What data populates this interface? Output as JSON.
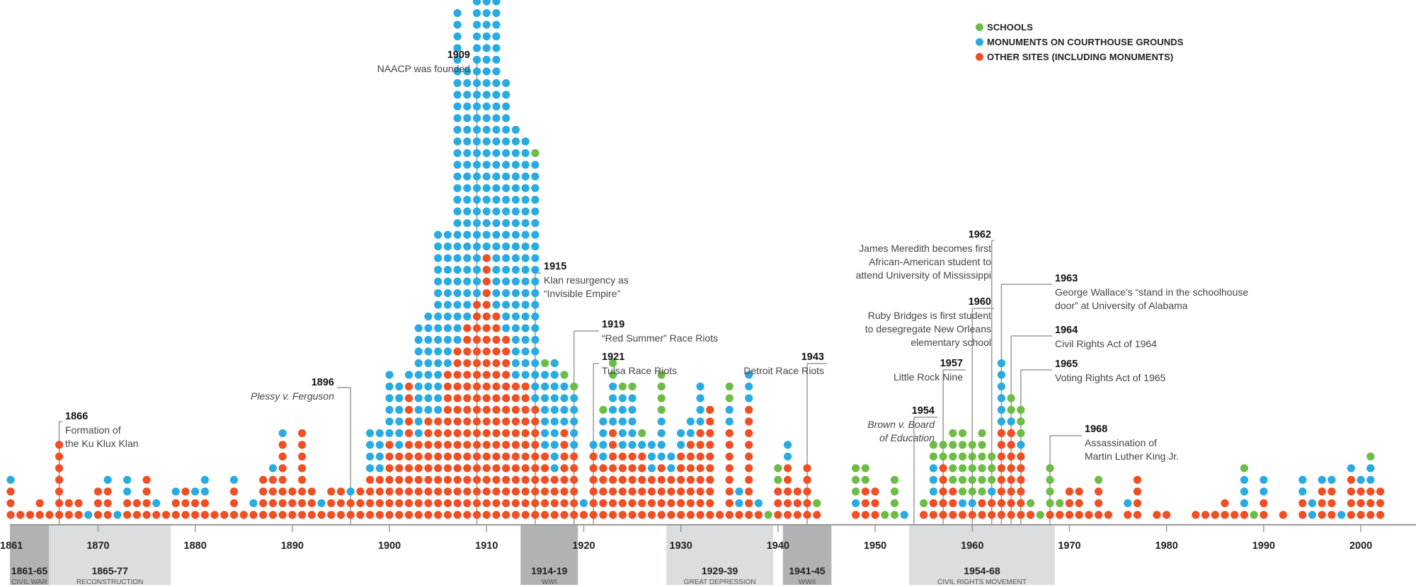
{
  "chart_data": {
    "type": "scatter",
    "subtype": "stacked-dot-timeline",
    "title": "",
    "xlabel": "",
    "ylabel": "",
    "x_range": [
      1861,
      2016
    ],
    "x_ticks": [
      1861,
      1870,
      1880,
      1890,
      1900,
      1910,
      1920,
      1930,
      1940,
      1950,
      1960,
      1970,
      1980,
      1990,
      2000
    ],
    "legend_position": "top-right",
    "encoding": "Each dot is one site; dots stack upward per year. Column strings read bottom to top: R = other sites, B = monuments on courthouse grounds, G = schools.",
    "series": [
      {
        "key": "G",
        "name": "SCHOOLS",
        "color": "#6cbd45"
      },
      {
        "key": "B",
        "name": "MONUMENTS ON COURTHOUSE GROUNDS",
        "color": "#29abe2"
      },
      {
        "key": "R",
        "name": "OTHER SITES (INCLUDING MONUMENTS)",
        "color": "#f04e23"
      }
    ],
    "columns": {
      "1861": "RRRB",
      "1862": "R",
      "1863": "R",
      "1864": "RR",
      "1865": "R",
      "1866": "RRRRRRR",
      "1867": "RR",
      "1868": "RR",
      "1869": "B",
      "1870": "RRR",
      "1871": "RRRB",
      "1872": "B",
      "1873": "RRBB",
      "1874": "RR",
      "1875": "RRRR",
      "1876": "RB",
      "1877": "R",
      "1878": "RRB",
      "1879": "RRR",
      "1880": "RRB",
      "1881": "RRBB",
      "1882": "R",
      "1883": "R",
      "1884": "RRRB",
      "1885": "R",
      "1886": "RB",
      "1887": "RRRR",
      "1888": "RRRRB",
      "1889": "RRRRRRRB",
      "1890": "RRR",
      "1891": "RRRRRRRR",
      "1892": "RRR",
      "1893": "RB",
      "1894": "RRR",
      "1895": "RRR",
      "1896": "RRB",
      "1897": "RRR",
      "1898": "RRRRBBBB",
      "1899": "RRRRBBBB",
      "1900": "RRRRRRRBBBBBB",
      "1901": "RRRRRRBBBBBB",
      "1902": "RRRRRRRRRRRRB",
      "1903": "RRRRRRRBBBBBBBBBB",
      "1904": "RRRRRRRRRBBBBBBBBB",
      "1905": "RRRRRRRRRBBBBBBBBBBBBBBBB",
      "1906": "RRRRRRRRRRRRRBBBBBBBBBBBB",
      "1907": "RRRRRRRRRRRRRRRBBBBBBBBBBBBBBBBBBBBBBBBBBBBB",
      "1908": "RRRRRRRRRRRRRRRRRBBBBBBBBBBBBBBBBBBBBBB",
      "1909": "RRRRRRRRRRRRRRRRRRRBBBBBBBBBBBBBBBBBBBBBBBBBBBBBBBB",
      "1910": "RRRRRRRRRRRRRRRRRRRRRRRBBBBBBBBBBBBBBBBBBBBBBG",
      "1911": "RRRRRRRRRRRRRRRRRRBBBBBBBBBBBBBBBBBBBBBBBBBBBBBBBB",
      "1912": "RRRRRRRRRRRRRRRRBBBBBBBBBBBBBBBBBBBBBB",
      "1913": "RRRRRRRRRRRRBBBBBBBBBBBBBBBBBBBBBB",
      "1914": "RRRRRRRRRRRRBBBBBBBBBBBBBBBBBBBBB",
      "1915": "RRRRRRRRRRBBBBBBBBBBBBBBBBBBBBBG",
      "1916": "RRRRRRBBBBBBBG",
      "1917": "RRRRBBBBBBBBBB",
      "1918": "RRRRRRRRBBBBG",
      "1919": "RRRRRRBBBBBG",
      "1920": "RB",
      "1921": "RRRRRRB",
      "1922": "RRRRRBBBBG",
      "1923": "RRRRRRRRBBBBGG",
      "1924": "RRRRRRBBBBBG",
      "1925": "RRRRRRBBBBBG",
      "1926": "RRRRRRBG",
      "1927": "RRRRBBB",
      "1928": "RRRRRBBBBGGGG",
      "1929": "RRRRBB",
      "1930": "RRRRRRBB",
      "1931": "RRRRRRRBB",
      "1932": "RRRRRRRRBBBB",
      "1933": "RRRRRRRRRR",
      "1934": "R",
      "1935": "RRRRRRRRBBGG",
      "1936": "RBB",
      "1937": "RRRRRRRRRRBBB",
      "1938": "RB",
      "1939": "G",
      "1940": "RRRGG",
      "1941": "RRRRRBB",
      "1942": "RRR",
      "1943": "RRRRR",
      "1944": "RG",
      "1948": "RBGGG",
      "1949": "RRRGG",
      "1950": "RRR",
      "1951": "G",
      "1952": "GGGG",
      "1953": "B",
      "1955": "RG",
      "1956": "RRBBBGG",
      "1957": "RRRRRGG",
      "1958": "RRRGGGGG",
      "1959": "RBGGGGGG",
      "1960": "RBGGGGG",
      "1961": "RRGGGGGG",
      "1962": "RRBGGG",
      "1963": "RRRRRRRRBBBBBB",
      "1964": "RRRRRRRRBGG",
      "1965": "RRRRRRBGGG",
      "1966": "RG",
      "1967": "G",
      "1968": "RGGGG",
      "1969": "RG",
      "1970": "RRR",
      "1971": "RRR",
      "1972": "R",
      "1973": "RRRG",
      "1974": "R",
      "1976": "RB",
      "1977": "RRRR",
      "1979": "R",
      "1980": "R",
      "1983": "R",
      "1984": "R",
      "1985": "R",
      "1986": "RR",
      "1987": "R",
      "1988": "RBBBG",
      "1989": "G",
      "1990": "RRBB",
      "1992": "R",
      "1994": "RRBB",
      "1995": "BB",
      "1996": "RRRB",
      "1997": "RRRB",
      "1998": "B",
      "1999": "RRRRB",
      "2000": "RRRB",
      "2001": "RRRBBG",
      "2002": "RRR"
    },
    "periods": [
      {
        "range": "1861-65",
        "name": "CIVIL WAR",
        "start": 1861,
        "end": 1865,
        "shade": "dark"
      },
      {
        "range": "1865-77",
        "name": "RECONSTRUCTION",
        "start": 1865,
        "end": 1877,
        "shade": "light"
      },
      {
        "range": "1914-19",
        "name": "WWI",
        "start": 1914,
        "end": 1918.9,
        "shade": "dark"
      },
      {
        "range": "1929-39",
        "name": "GREAT DEPRESSION",
        "start": 1929,
        "end": 1939,
        "shade": "light"
      },
      {
        "range": "1941-45",
        "name": "WWII",
        "start": 1941,
        "end": 1945,
        "shade": "dark"
      },
      {
        "range": "1954-68",
        "name": "CIVIL RIGHTS MOVEMENT",
        "start": 1954,
        "end": 1968,
        "shade": "light"
      }
    ],
    "annotations": [
      {
        "year": "1866",
        "lines": [
          "Formation of",
          "the Ku Klux Klan"
        ],
        "italic": false,
        "side": "right"
      },
      {
        "year": "1896",
        "lines": [
          "Plessy v. Ferguson"
        ],
        "italic": true,
        "side": "left"
      },
      {
        "year": "1909",
        "lines": [
          "NAACP was founded"
        ],
        "italic": false,
        "side": "left"
      },
      {
        "year": "1915",
        "lines": [
          "Klan resurgency as",
          "“Invisible Empire”"
        ],
        "italic": false,
        "side": "right"
      },
      {
        "year": "1919",
        "lines": [
          "“Red Summer” Race Riots"
        ],
        "italic": false,
        "side": "right"
      },
      {
        "year": "1921",
        "lines": [
          "Tulsa Race Riots"
        ],
        "italic": false,
        "side": "right"
      },
      {
        "year": "1943",
        "lines": [
          "Detroit Race Riots"
        ],
        "italic": false,
        "side": "left"
      },
      {
        "year": "1954",
        "lines": [
          "Brown v. Board",
          "of Education"
        ],
        "italic": true,
        "side": "left"
      },
      {
        "year": "1957",
        "lines": [
          "Little Rock Nine"
        ],
        "italic": false,
        "side": "left"
      },
      {
        "year": "1960",
        "lines": [
          "Ruby Bridges is first student",
          "to desegregate New Orleans",
          "elementary school"
        ],
        "italic": false,
        "side": "left"
      },
      {
        "year": "1962",
        "lines": [
          "James Meredith becomes first",
          "African-American student to",
          "attend University of Mississippi"
        ],
        "italic": false,
        "side": "left"
      },
      {
        "year": "1963",
        "lines": [
          "George Wallace’s “stand in the schoolhouse",
          "door” at University of Alabama"
        ],
        "italic": false,
        "side": "right"
      },
      {
        "year": "1964",
        "lines": [
          "Civil Rights Act of 1964"
        ],
        "italic": false,
        "side": "right"
      },
      {
        "year": "1965",
        "lines": [
          "Voting Rights Act of 1965"
        ],
        "italic": false,
        "side": "right"
      },
      {
        "year": "1968",
        "lines": [
          "Assassination of",
          "Martin Luther King Jr."
        ],
        "italic": false,
        "side": "right"
      }
    ]
  },
  "legend": {
    "items": [
      {
        "label": "SCHOOLS",
        "color": "#6cbd45"
      },
      {
        "label": "MONUMENTS ON COURTHOUSE GROUNDS",
        "color": "#29abe2"
      },
      {
        "label": "OTHER SITES (INCLUDING MONUMENTS)",
        "color": "#f04e23"
      }
    ]
  },
  "colors": {
    "axis": "#9a9a9a",
    "band_dark": "#b1b2b4",
    "band_light": "#dcdddf",
    "leader": "#9a9a9a"
  }
}
